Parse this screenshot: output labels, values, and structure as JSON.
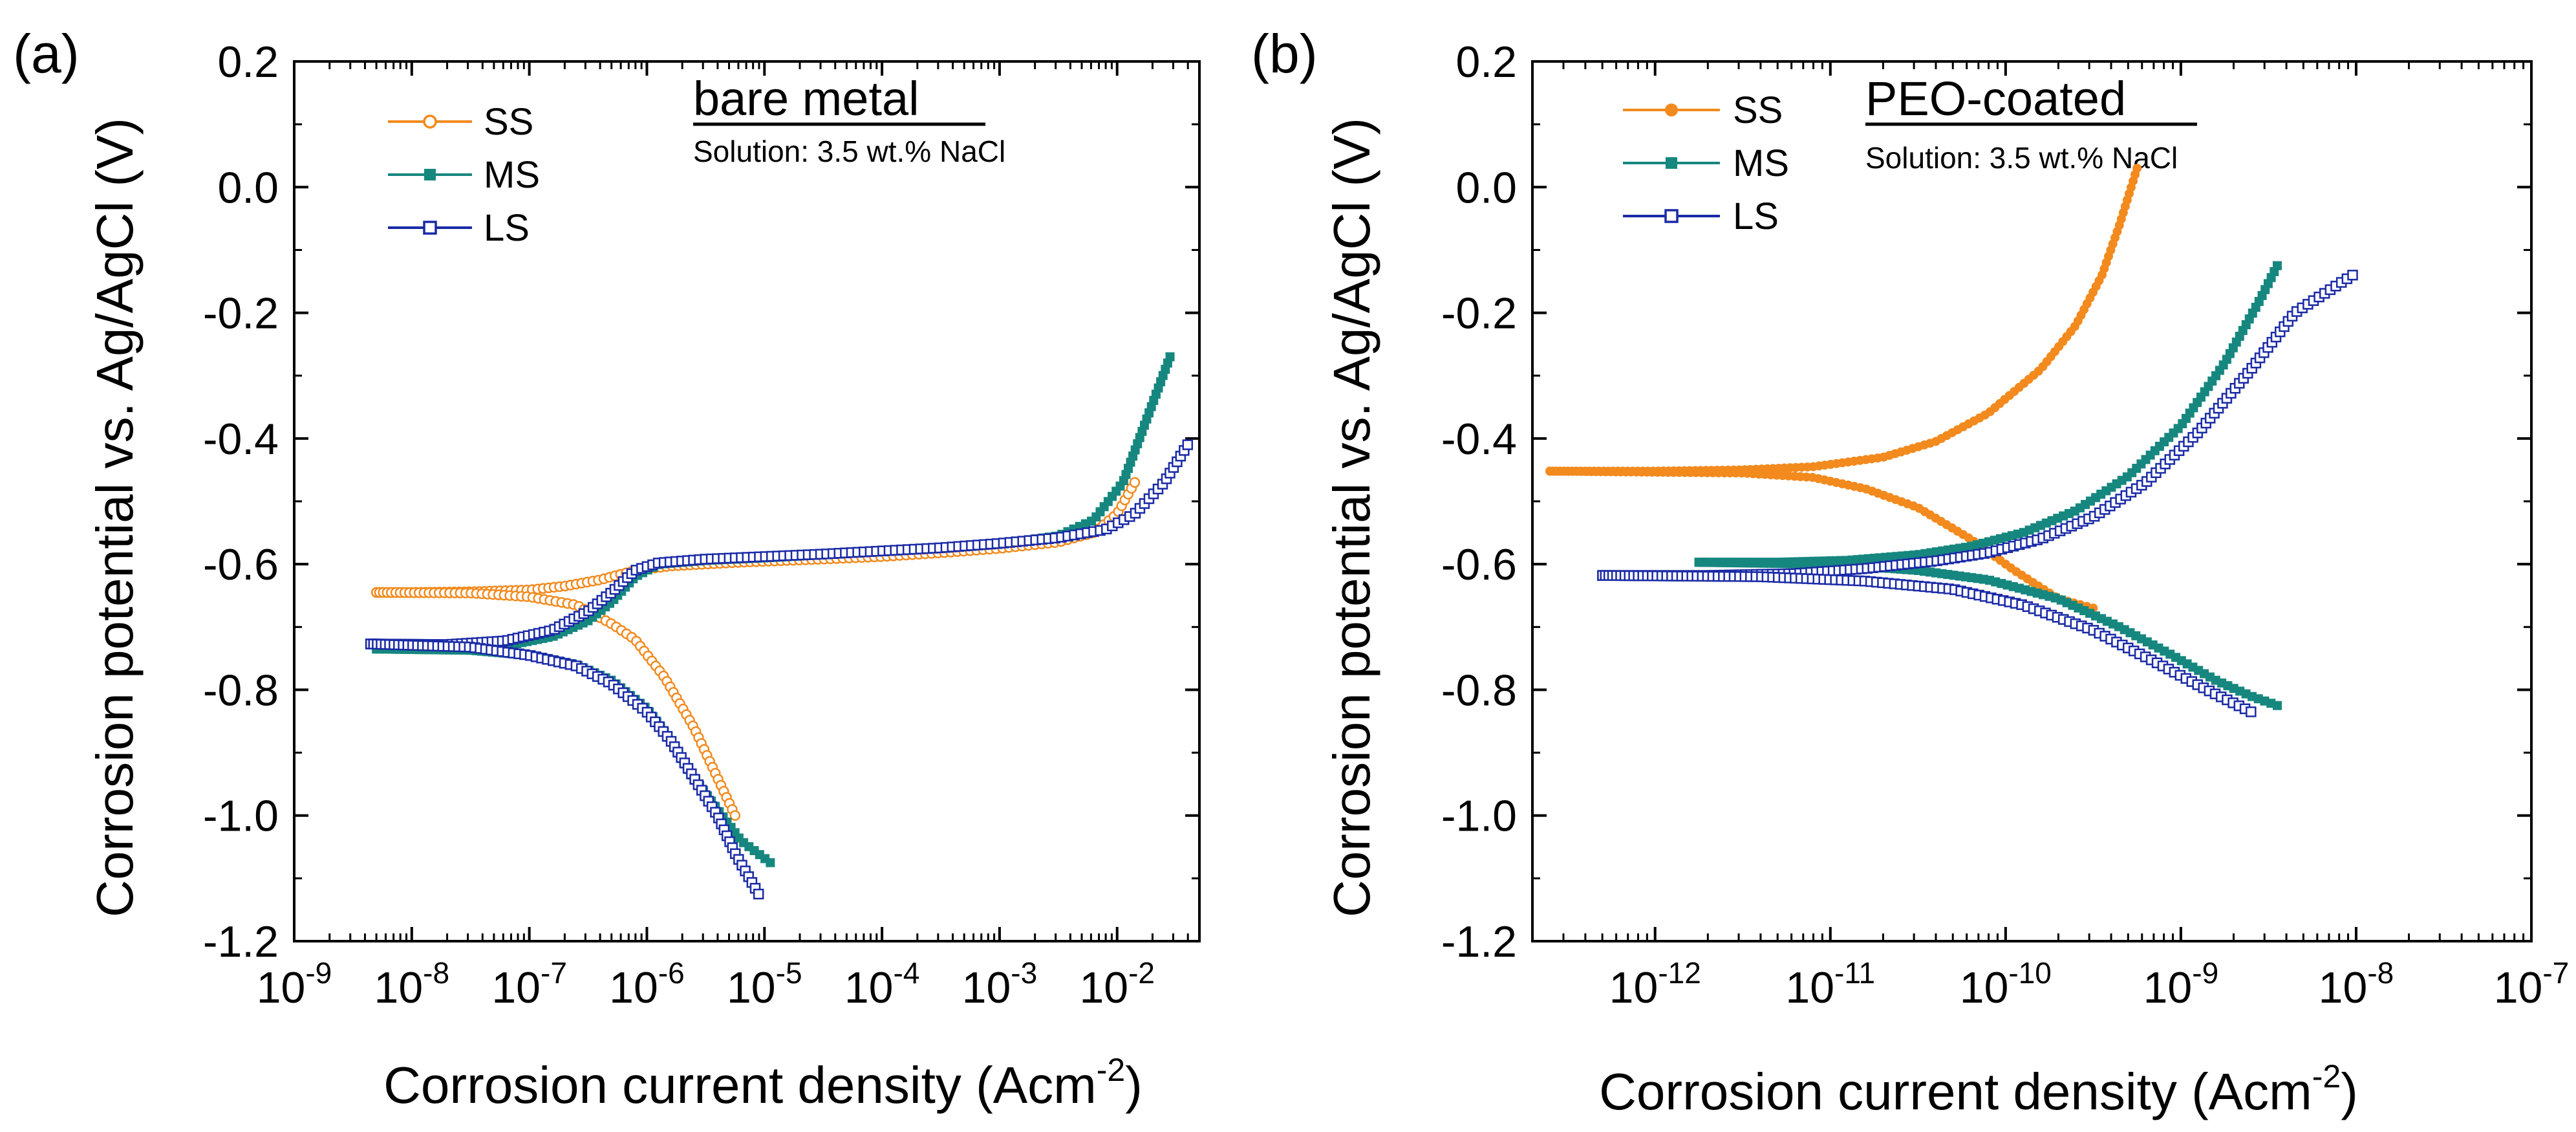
{
  "chart_data": [
    {
      "type": "line",
      "panel_label": "(a)",
      "title": "bare metal",
      "subtitle": "Solution: 3.5 wt.% NaCl",
      "xlabel": "Corrosion current density (Acm",
      "xlabel_sup": "-2",
      "xlabel_close": ")",
      "ylabel": "Corrosion potential vs. Ag/AgCl (V)",
      "xscale": "log",
      "xlim_log10": [
        -9,
        -1.3
      ],
      "ylim": [
        -1.2,
        0.2
      ],
      "x_ticks": [
        {
          "base": "10",
          "exp": "-9",
          "v": -9
        },
        {
          "base": "10",
          "exp": "-8",
          "v": -8
        },
        {
          "base": "10",
          "exp": "-7",
          "v": -7
        },
        {
          "base": "10",
          "exp": "-6",
          "v": -6
        },
        {
          "base": "10",
          "exp": "-5",
          "v": -5
        },
        {
          "base": "10",
          "exp": "-4",
          "v": -4
        },
        {
          "base": "10",
          "exp": "-3",
          "v": -3
        },
        {
          "base": "10",
          "exp": "-2",
          "v": -2
        }
      ],
      "y_ticks": [
        {
          "label": "0.2",
          "v": 0.2
        },
        {
          "label": "0.0",
          "v": 0.0
        },
        {
          "label": "-0.2",
          "v": -0.2
        },
        {
          "label": "-0.4",
          "v": -0.4
        },
        {
          "label": "-0.6",
          "v": -0.6
        },
        {
          "label": "-0.8",
          "v": -0.8
        },
        {
          "label": "-1.0",
          "v": -1.0
        },
        {
          "label": "-1.2",
          "v": -1.2
        }
      ],
      "legend_position": "top-left",
      "series": [
        {
          "name": "SS",
          "color": "#f28a1e",
          "marker": "open-circle",
          "branches": [
            [
              [
                -8.3,
                -0.645
              ],
              [
                -8,
                -0.645
              ],
              [
                -7.5,
                -0.644
              ],
              [
                -7,
                -0.641
              ],
              [
                -6.7,
                -0.635
              ],
              [
                -6.4,
                -0.625
              ],
              [
                -6.1,
                -0.61
              ],
              [
                -5.8,
                -0.603
              ],
              [
                -5.2,
                -0.597
              ],
              [
                -4.5,
                -0.592
              ],
              [
                -4,
                -0.588
              ],
              [
                -3.5,
                -0.582
              ],
              [
                -3,
                -0.575
              ],
              [
                -2.5,
                -0.565
              ],
              [
                -2.2,
                -0.55
              ],
              [
                -2,
                -0.52
              ],
              [
                -1.85,
                -0.47
              ]
            ],
            [
              [
                -8.3,
                -0.645
              ],
              [
                -7.5,
                -0.646
              ],
              [
                -7,
                -0.652
              ],
              [
                -6.6,
                -0.665
              ],
              [
                -6.3,
                -0.695
              ],
              [
                -6.1,
                -0.72
              ],
              [
                -5.85,
                -0.78
              ],
              [
                -5.6,
                -0.86
              ],
              [
                -5.4,
                -0.94
              ],
              [
                -5.25,
                -1.0
              ]
            ]
          ]
        },
        {
          "name": "MS",
          "color": "#16877f",
          "marker": "filled-square",
          "branches": [
            [
              [
                -8.3,
                -0.735
              ],
              [
                -7.7,
                -0.735
              ],
              [
                -7.2,
                -0.73
              ],
              [
                -6.8,
                -0.715
              ],
              [
                -6.5,
                -0.69
              ],
              [
                -6.3,
                -0.66
              ],
              [
                -6.1,
                -0.62
              ],
              [
                -5.9,
                -0.6
              ],
              [
                -5.5,
                -0.594
              ],
              [
                -5,
                -0.59
              ],
              [
                -4.5,
                -0.585
              ],
              [
                -4,
                -0.58
              ],
              [
                -3.5,
                -0.575
              ],
              [
                -3,
                -0.568
              ],
              [
                -2.5,
                -0.555
              ],
              [
                -2.2,
                -0.53
              ],
              [
                -1.95,
                -0.47
              ],
              [
                -1.75,
                -0.37
              ],
              [
                -1.55,
                -0.27
              ]
            ],
            [
              [
                -8.3,
                -0.735
              ],
              [
                -7.5,
                -0.737
              ],
              [
                -7,
                -0.745
              ],
              [
                -6.6,
                -0.76
              ],
              [
                -6.3,
                -0.785
              ],
              [
                -6,
                -0.83
              ],
              [
                -5.8,
                -0.88
              ],
              [
                -5.6,
                -0.94
              ],
              [
                -5.4,
                -0.99
              ],
              [
                -5.2,
                -1.04
              ],
              [
                -4.95,
                -1.075
              ]
            ]
          ]
        },
        {
          "name": "LS",
          "color": "#1a2aa6",
          "marker": "half-square",
          "branches": [
            [
              [
                -8.35,
                -0.727
              ],
              [
                -7.7,
                -0.728
              ],
              [
                -7.2,
                -0.722
              ],
              [
                -6.8,
                -0.705
              ],
              [
                -6.5,
                -0.675
              ],
              [
                -6.3,
                -0.645
              ],
              [
                -6.1,
                -0.61
              ],
              [
                -5.9,
                -0.598
              ],
              [
                -5.5,
                -0.592
              ],
              [
                -5,
                -0.588
              ],
              [
                -4.5,
                -0.584
              ],
              [
                -4,
                -0.579
              ],
              [
                -3.5,
                -0.574
              ],
              [
                -3,
                -0.567
              ],
              [
                -2.5,
                -0.558
              ],
              [
                -2.1,
                -0.545
              ],
              [
                -1.85,
                -0.52
              ],
              [
                -1.6,
                -0.47
              ],
              [
                -1.4,
                -0.41
              ]
            ],
            [
              [
                -8.35,
                -0.727
              ],
              [
                -7.5,
                -0.732
              ],
              [
                -7,
                -0.745
              ],
              [
                -6.6,
                -0.762
              ],
              [
                -6.3,
                -0.79
              ],
              [
                -6,
                -0.835
              ],
              [
                -5.8,
                -0.88
              ],
              [
                -5.6,
                -0.94
              ],
              [
                -5.4,
                -1.0
              ],
              [
                -5.25,
                -1.06
              ],
              [
                -5.05,
                -1.125
              ]
            ]
          ]
        }
      ]
    },
    {
      "type": "line",
      "panel_label": "(b)",
      "title": "PEO-coated",
      "subtitle": "Solution: 3.5 wt.% NaCl",
      "xlabel": "Corrosion current density (Acm",
      "xlabel_sup": "-2",
      "xlabel_close": ")",
      "ylabel": "Corrosion potential vs. Ag/AgCl (V)",
      "xscale": "log",
      "xlim_log10": [
        -12.7,
        -7
      ],
      "ylim": [
        -1.2,
        0.2
      ],
      "x_ticks": [
        {
          "base": "10",
          "exp": "-12",
          "v": -12
        },
        {
          "base": "10",
          "exp": "-11",
          "v": -11
        },
        {
          "base": "10",
          "exp": "-10",
          "v": -10
        },
        {
          "base": "10",
          "exp": "-9",
          "v": -9
        },
        {
          "base": "10",
          "exp": "-8",
          "v": -8
        },
        {
          "base": "10",
          "exp": "-7",
          "v": -7
        }
      ],
      "y_ticks": [
        {
          "label": "0.2",
          "v": 0.2
        },
        {
          "label": "0.0",
          "v": 0.0
        },
        {
          "label": "-0.2",
          "v": -0.2
        },
        {
          "label": "-0.4",
          "v": -0.4
        },
        {
          "label": "-0.6",
          "v": -0.6
        },
        {
          "label": "-0.8",
          "v": -0.8
        },
        {
          "label": "-1.0",
          "v": -1.0
        },
        {
          "label": "-1.2",
          "v": -1.2
        }
      ],
      "legend_position": "top-left",
      "series": [
        {
          "name": "SS",
          "color": "#f28a1e",
          "marker": "filled-circle",
          "branches": [
            [
              [
                -12.6,
                -0.452
              ],
              [
                -12,
                -0.452
              ],
              [
                -11.5,
                -0.45
              ],
              [
                -11.1,
                -0.445
              ],
              [
                -10.7,
                -0.43
              ],
              [
                -10.4,
                -0.405
              ],
              [
                -10.1,
                -0.36
              ],
              [
                -9.8,
                -0.29
              ],
              [
                -9.6,
                -0.22
              ],
              [
                -9.45,
                -0.14
              ],
              [
                -9.35,
                -0.06
              ],
              [
                -9.25,
                0.03
              ]
            ],
            [
              [
                -12.6,
                -0.452
              ],
              [
                -11.5,
                -0.455
              ],
              [
                -11.1,
                -0.462
              ],
              [
                -10.8,
                -0.48
              ],
              [
                -10.5,
                -0.51
              ],
              [
                -10.2,
                -0.56
              ],
              [
                -9.95,
                -0.61
              ],
              [
                -9.7,
                -0.655
              ],
              [
                -9.5,
                -0.67
              ]
            ]
          ]
        },
        {
          "name": "MS",
          "color": "#16877f",
          "marker": "filled-square",
          "branches": [
            [
              [
                -11.75,
                -0.597
              ],
              [
                -11.3,
                -0.597
              ],
              [
                -10.9,
                -0.594
              ],
              [
                -10.5,
                -0.585
              ],
              [
                -10.2,
                -0.572
              ],
              [
                -9.9,
                -0.55
              ],
              [
                -9.6,
                -0.515
              ],
              [
                -9.3,
                -0.46
              ],
              [
                -9,
                -0.38
              ],
              [
                -8.75,
                -0.28
              ],
              [
                -8.55,
                -0.18
              ],
              [
                -8.45,
                -0.125
              ]
            ],
            [
              [
                -11.75,
                -0.597
              ],
              [
                -11,
                -0.6
              ],
              [
                -10.5,
                -0.61
              ],
              [
                -10.1,
                -0.625
              ],
              [
                -9.7,
                -0.655
              ],
              [
                -9.35,
                -0.7
              ],
              [
                -9.05,
                -0.745
              ],
              [
                -8.8,
                -0.785
              ],
              [
                -8.6,
                -0.81
              ],
              [
                -8.45,
                -0.825
              ]
            ]
          ]
        },
        {
          "name": "LS",
          "color": "#1a2aa6",
          "marker": "half-square",
          "branches": [
            [
              [
                -12.3,
                -0.618
              ],
              [
                -11.7,
                -0.618
              ],
              [
                -11.2,
                -0.615
              ],
              [
                -10.8,
                -0.607
              ],
              [
                -10.4,
                -0.595
              ],
              [
                -10.1,
                -0.582
              ],
              [
                -9.8,
                -0.56
              ],
              [
                -9.5,
                -0.525
              ],
              [
                -9.2,
                -0.47
              ],
              [
                -8.9,
                -0.39
              ],
              [
                -8.6,
                -0.29
              ],
              [
                -8.35,
                -0.2
              ],
              [
                -8.02,
                -0.14
              ]
            ],
            [
              [
                -12.3,
                -0.618
              ],
              [
                -11.4,
                -0.62
              ],
              [
                -10.8,
                -0.627
              ],
              [
                -10.3,
                -0.64
              ],
              [
                -9.9,
                -0.665
              ],
              [
                -9.5,
                -0.705
              ],
              [
                -9.15,
                -0.755
              ],
              [
                -8.85,
                -0.8
              ],
              [
                -8.6,
                -0.835
              ]
            ]
          ]
        }
      ]
    }
  ]
}
